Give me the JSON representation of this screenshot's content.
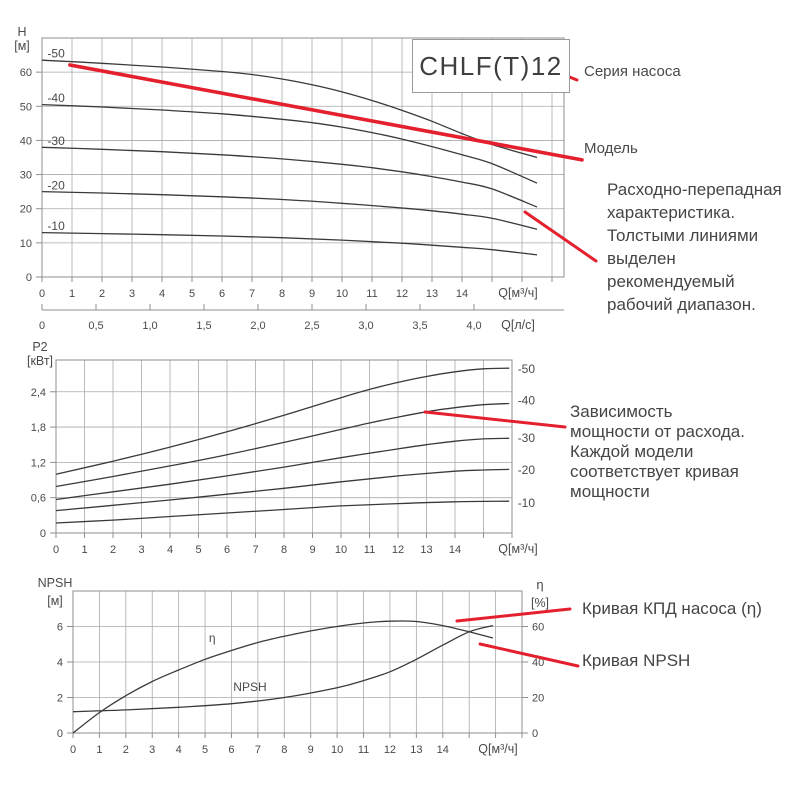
{
  "model_box": {
    "text": "CHLF(T)12"
  },
  "annotations": {
    "series_label": "Серия насоса",
    "model_label": "Модель",
    "flow_head_note": "Расходно-перепадная\nхарактеристика.\nТолстыми линиями\nвыделен\nрекомендуемый\nрабочий диапазон.",
    "power_note": "Зависимость\nмощности от расхода.\nКаждой модели\nсоответствует кривая\nмощности",
    "efficiency_note": "Кривая КПД насоса (η)",
    "npsh_note": "Кривая NPSH"
  },
  "colors": {
    "red": "#e5202e",
    "curve": "#3a3a3c",
    "grid": "#aaaaaa",
    "frame": "#8f8f8f",
    "text": "#4a4a4c"
  },
  "chart_data": [
    {
      "type": "line",
      "name": "head-flow-chart",
      "xlim": [
        0,
        17.4
      ],
      "ylim": [
        0,
        70
      ],
      "x_axis": {
        "label": "Q[м³/ч]",
        "tick_labels": [
          "0",
          "1",
          "2",
          "3",
          "4",
          "5",
          "6",
          "7",
          "8",
          "9",
          "10",
          "11",
          "12",
          "13",
          "14"
        ]
      },
      "x2_axis": {
        "label": "Q[л/с]",
        "step": 1.8,
        "tick_labels": [
          "0",
          "0,5",
          "1,0",
          "1,5",
          "2,0",
          "2,5",
          "3,0",
          "3,5",
          "4,0"
        ]
      },
      "y_axis": {
        "label": "H",
        "unit": "[м]",
        "grid": [
          10,
          20,
          30,
          40,
          50,
          60
        ],
        "ticks": [
          {
            "v": 0,
            "label": "0"
          },
          {
            "v": 10,
            "label": "10"
          },
          {
            "v": 20,
            "label": "20"
          },
          {
            "v": 30,
            "label": "30"
          },
          {
            "v": 40,
            "label": "40"
          },
          {
            "v": 50,
            "label": "50"
          },
          {
            "v": 60,
            "label": "60"
          }
        ]
      },
      "series": [
        {
          "name": "-50",
          "label_at": [
            0.47,
            64.3
          ],
          "points": [
            [
              0,
              63.5
            ],
            [
              2,
              62.6
            ],
            [
              4,
              61.5
            ],
            [
              6,
              60.2
            ],
            [
              7,
              59.3
            ],
            [
              8,
              58
            ],
            [
              9,
              56.3
            ],
            [
              10,
              54.2
            ],
            [
              11,
              51.7
            ],
            [
              12,
              48.8
            ],
            [
              13,
              45.6
            ],
            [
              14,
              42
            ],
            [
              15,
              38.8
            ],
            [
              16.5,
              35
            ]
          ]
        },
        {
          "name": "-40",
          "label_at": [
            0.47,
            51.3
          ],
          "points": [
            [
              0,
              50.5
            ],
            [
              2,
              49.8
            ],
            [
              4,
              48.9
            ],
            [
              6,
              47.8
            ],
            [
              8,
              46.2
            ],
            [
              9,
              45.2
            ],
            [
              10,
              43.9
            ],
            [
              11,
              42.3
            ],
            [
              12,
              40.4
            ],
            [
              13,
              38.2
            ],
            [
              14,
              35.8
            ],
            [
              15,
              33.2
            ],
            [
              16.5,
              27.5
            ]
          ]
        },
        {
          "name": "-30",
          "label_at": [
            0.47,
            38.7
          ],
          "points": [
            [
              0,
              38
            ],
            [
              2,
              37.4
            ],
            [
              4,
              36.7
            ],
            [
              6,
              35.8
            ],
            [
              8,
              34.6
            ],
            [
              10,
              33
            ],
            [
              11,
              32
            ],
            [
              12,
              30.8
            ],
            [
              13,
              29.4
            ],
            [
              14,
              27.8
            ],
            [
              15,
              25.8
            ],
            [
              16.5,
              20.5
            ]
          ]
        },
        {
          "name": "-20",
          "label_at": [
            0.47,
            25.6
          ],
          "points": [
            [
              0,
              25
            ],
            [
              2,
              24.6
            ],
            [
              4,
              24.1
            ],
            [
              6,
              23.5
            ],
            [
              8,
              22.7
            ],
            [
              10,
              21.6
            ],
            [
              12,
              20.2
            ],
            [
              13,
              19.4
            ],
            [
              14,
              18.4
            ],
            [
              15,
              17.2
            ],
            [
              16.5,
              14
            ]
          ]
        },
        {
          "name": "-10",
          "label_at": [
            0.47,
            13.8
          ],
          "points": [
            [
              0,
              13
            ],
            [
              2,
              12.7
            ],
            [
              4,
              12.4
            ],
            [
              6,
              12
            ],
            [
              8,
              11.5
            ],
            [
              10,
              10.8
            ],
            [
              12,
              9.9
            ],
            [
              14,
              8.7
            ],
            [
              15,
              8
            ],
            [
              16.5,
              6.5
            ]
          ]
        }
      ],
      "range_line": {
        "x": [
          0.93,
          18.0
        ],
        "y": [
          62.1,
          34.3
        ]
      }
    },
    {
      "type": "line",
      "name": "power-flow-chart",
      "xlim": [
        0,
        16
      ],
      "ylim": [
        0,
        2.94
      ],
      "x_axis": {
        "label": "Q[м³/ч]",
        "tick_labels": [
          "0",
          "1",
          "2",
          "3",
          "4",
          "5",
          "6",
          "7",
          "8",
          "9",
          "10",
          "11",
          "12",
          "13",
          "14"
        ]
      },
      "y_axis": {
        "label": "P2",
        "unit": "[кВт]",
        "grid": [
          0.6,
          1.2,
          1.8,
          2.4
        ],
        "ticks": [
          {
            "v": 0,
            "label": "0"
          },
          {
            "v": 0.6,
            "label": "0,6"
          },
          {
            "v": 1.2,
            "label": "1,2"
          },
          {
            "v": 1.8,
            "label": "1,8"
          },
          {
            "v": 2.4,
            "label": "2,4"
          }
        ]
      },
      "series": [
        {
          "name": "-50",
          "label_at": [
            16.2,
            2.72
          ],
          "label_anchor": "start",
          "points": [
            [
              0,
              1.0
            ],
            [
              2,
              1.22
            ],
            [
              4,
              1.46
            ],
            [
              6,
              1.72
            ],
            [
              8,
              2.0
            ],
            [
              9,
              2.15
            ],
            [
              10,
              2.3
            ],
            [
              11,
              2.44
            ],
            [
              12,
              2.56
            ],
            [
              13,
              2.66
            ],
            [
              14,
              2.74
            ],
            [
              15,
              2.79
            ],
            [
              15.9,
              2.8
            ]
          ]
        },
        {
          "name": "-40",
          "label_at": [
            16.2,
            2.18
          ],
          "label_anchor": "start",
          "points": [
            [
              0,
              0.79
            ],
            [
              2,
              0.96
            ],
            [
              4,
              1.14
            ],
            [
              6,
              1.33
            ],
            [
              8,
              1.54
            ],
            [
              10,
              1.76
            ],
            [
              11,
              1.87
            ],
            [
              12,
              1.97
            ],
            [
              13,
              2.06
            ],
            [
              14,
              2.13
            ],
            [
              15,
              2.18
            ],
            [
              15.9,
              2.2
            ]
          ]
        },
        {
          "name": "-30",
          "label_at": [
            16.2,
            1.55
          ],
          "label_anchor": "start",
          "points": [
            [
              0,
              0.57
            ],
            [
              2,
              0.7
            ],
            [
              4,
              0.83
            ],
            [
              6,
              0.97
            ],
            [
              8,
              1.12
            ],
            [
              10,
              1.28
            ],
            [
              12,
              1.43
            ],
            [
              13,
              1.5
            ],
            [
              14,
              1.56
            ],
            [
              15,
              1.6
            ],
            [
              15.9,
              1.61
            ]
          ]
        },
        {
          "name": "-20",
          "label_at": [
            16.2,
            1.0
          ],
          "label_anchor": "start",
          "points": [
            [
              0,
              0.38
            ],
            [
              2,
              0.47
            ],
            [
              4,
              0.56
            ],
            [
              6,
              0.66
            ],
            [
              8,
              0.76
            ],
            [
              10,
              0.87
            ],
            [
              12,
              0.97
            ],
            [
              14,
              1.05
            ],
            [
              15,
              1.07
            ],
            [
              15.9,
              1.08
            ]
          ]
        },
        {
          "name": "-10",
          "label_at": [
            16.2,
            0.44
          ],
          "label_anchor": "start",
          "points": [
            [
              0,
              0.17
            ],
            [
              2,
              0.22
            ],
            [
              4,
              0.28
            ],
            [
              6,
              0.34
            ],
            [
              8,
              0.4
            ],
            [
              10,
              0.46
            ],
            [
              12,
              0.5
            ],
            [
              14,
              0.53
            ],
            [
              15.9,
              0.54
            ]
          ]
        }
      ]
    },
    {
      "type": "line",
      "name": "npsh-efficiency-chart",
      "xlim": [
        0,
        17
      ],
      "ylim": [
        0,
        8
      ],
      "y2lim": [
        0,
        80
      ],
      "x_axis": {
        "label": "Q[м³/ч]",
        "tick_labels": [
          "0",
          "1",
          "2",
          "3",
          "4",
          "5",
          "6",
          "7",
          "8",
          "9",
          "10",
          "11",
          "12",
          "13",
          "14"
        ]
      },
      "y_axis": {
        "label": "NPSH",
        "unit": "[м]",
        "grid": [
          2,
          4,
          6
        ],
        "ticks": [
          {
            "v": 0,
            "label": "0"
          },
          {
            "v": 2,
            "label": "2"
          },
          {
            "v": 4,
            "label": "4"
          },
          {
            "v": 6,
            "label": "6"
          }
        ]
      },
      "y2_axis": {
        "label": "η",
        "unit": "[%]",
        "ticks": [
          {
            "v": 0,
            "label": "0"
          },
          {
            "v": 20,
            "label": "20"
          },
          {
            "v": 40,
            "label": "40"
          },
          {
            "v": 60,
            "label": "60"
          }
        ]
      },
      "series": [
        {
          "name": "η",
          "axis": "y2",
          "label_at": [
            5.27,
            51.3
          ],
          "points": [
            [
              0,
              0
            ],
            [
              1,
              11.5
            ],
            [
              2,
              21
            ],
            [
              3,
              29
            ],
            [
              4,
              35.5
            ],
            [
              5,
              41.5
            ],
            [
              6,
              46.5
            ],
            [
              7,
              51
            ],
            [
              8,
              54.5
            ],
            [
              9,
              57.5
            ],
            [
              10,
              60
            ],
            [
              11,
              62
            ],
            [
              12,
              63
            ],
            [
              13,
              62.8
            ],
            [
              14,
              60.5
            ],
            [
              15,
              57
            ],
            [
              15.9,
              53.5
            ]
          ]
        },
        {
          "name": "NPSH",
          "label_at": [
            6.7,
            2.37
          ],
          "points": [
            [
              0,
              1.2
            ],
            [
              2,
              1.3
            ],
            [
              4,
              1.45
            ],
            [
              6,
              1.65
            ],
            [
              8,
              2.0
            ],
            [
              10,
              2.55
            ],
            [
              11,
              2.95
            ],
            [
              12,
              3.45
            ],
            [
              13,
              4.15
            ],
            [
              14,
              4.95
            ],
            [
              15,
              5.7
            ],
            [
              15.9,
              6.05
            ]
          ]
        }
      ]
    }
  ]
}
